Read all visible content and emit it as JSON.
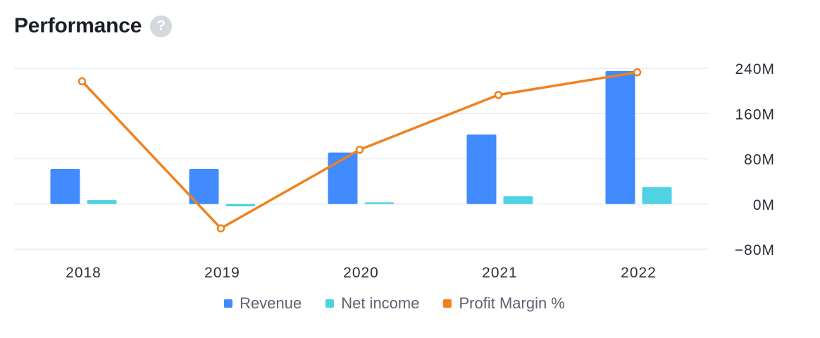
{
  "header": {
    "title": "Performance",
    "help_glyph": "?"
  },
  "colors": {
    "revenue": "#418bff",
    "net_income": "#4fd2e3",
    "profit_margin": "#f0821f",
    "grid": "#e9ecf1",
    "axis_text": "#2b2f38"
  },
  "chart_data": {
    "type": "bar",
    "categories": [
      "2018",
      "2019",
      "2020",
      "2021",
      "2022"
    ],
    "series": [
      {
        "name": "Revenue",
        "kind": "bar",
        "values": [
          62,
          62,
          91,
          123,
          235
        ]
      },
      {
        "name": "Net income",
        "kind": "bar",
        "values": [
          7,
          -4,
          3,
          14,
          30
        ]
      },
      {
        "name": "Profit Margin %",
        "kind": "line",
        "values": [
          217,
          -43,
          96,
          193,
          233
        ]
      }
    ],
    "y_axis": {
      "position": "right",
      "ylim": [
        -80,
        240
      ],
      "ticks": [
        240,
        160,
        80,
        0,
        -80
      ],
      "tick_labels": [
        "240M",
        "160M",
        "80M",
        "0M",
        "−80M"
      ]
    },
    "grid": true,
    "legend": {
      "placement": "bottom-center",
      "entries": [
        "Revenue",
        "Net income",
        "Profit Margin %"
      ]
    }
  }
}
